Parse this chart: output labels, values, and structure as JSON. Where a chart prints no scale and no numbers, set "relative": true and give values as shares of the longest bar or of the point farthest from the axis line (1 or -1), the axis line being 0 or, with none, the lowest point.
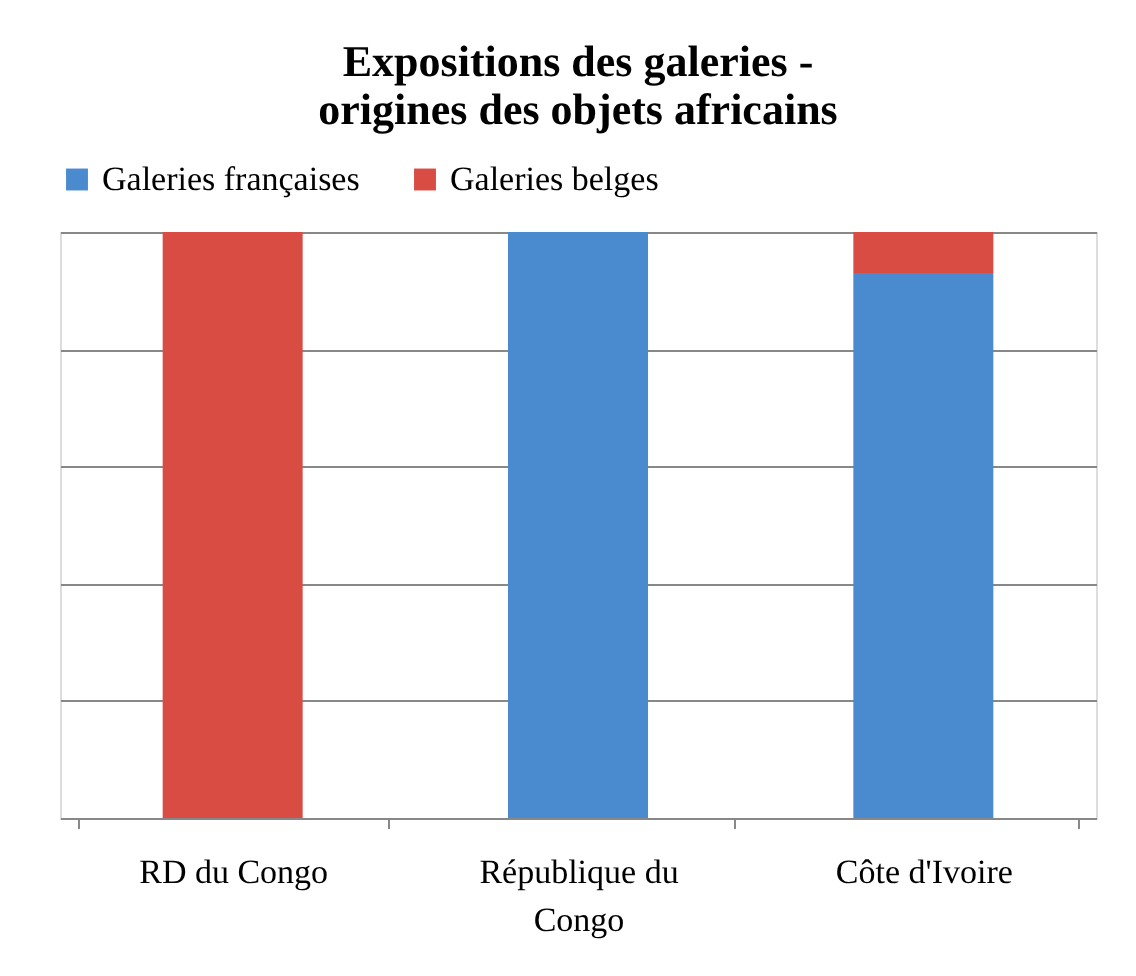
{
  "chart_data": {
    "type": "bar",
    "title": "Expositions des galeries - origines des objets africains",
    "categories": [
      "RD du Congo",
      "République du Congo",
      "Côte d'Ivoire"
    ],
    "stacked": true,
    "relative": true,
    "grid": "y",
    "legend": "top",
    "series": [
      {
        "name": "Galeries françaises",
        "color": "#4a8bd0",
        "values": [
          0,
          1,
          0.93
        ]
      },
      {
        "name": "Galeries belges",
        "color": "#d84c44",
        "values": [
          1,
          0,
          0.07
        ]
      }
    ]
  }
}
